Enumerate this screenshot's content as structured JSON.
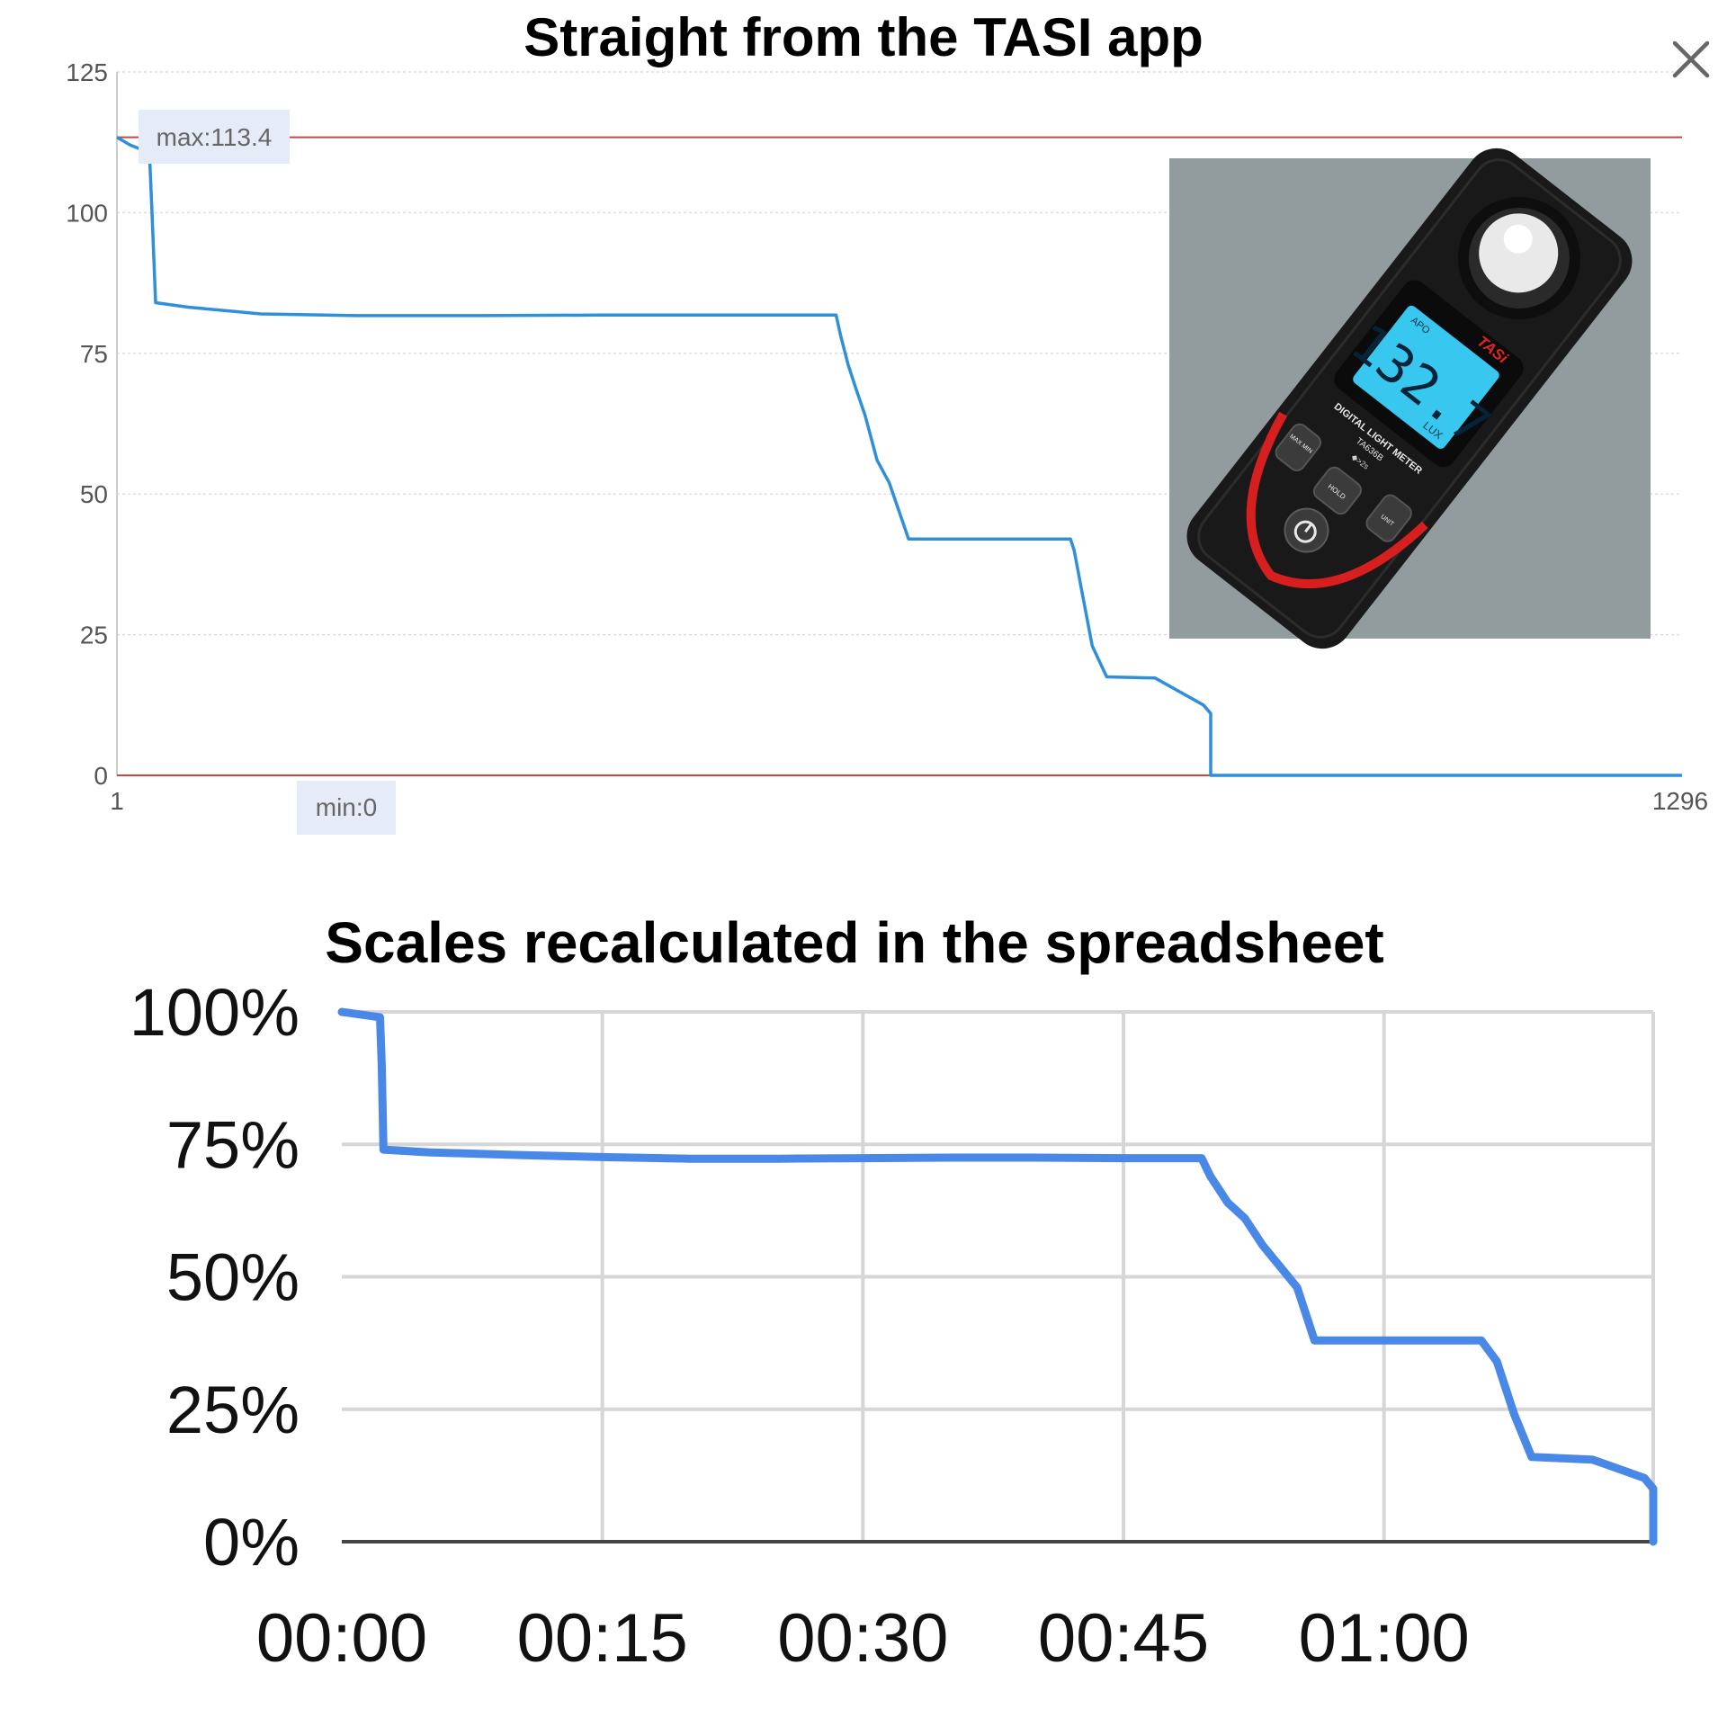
{
  "close_icon": "close-icon",
  "chart_data": [
    {
      "type": "line",
      "title": "Straight from the TASI app",
      "xlabel": "",
      "ylabel": "",
      "x_tick_labels": [
        "1",
        "1296"
      ],
      "xlim": [
        1,
        1296
      ],
      "y_ticks": [
        0,
        25,
        50,
        75,
        100,
        125
      ],
      "ylim": [
        0,
        125
      ],
      "grid": true,
      "max_label": "max:113.4",
      "min_label": "min:0",
      "max_value": 113.4,
      "min_value": 0,
      "colors": {
        "line": "#2f8fd8",
        "limit_line": "#cc4444",
        "tag_bg": "#e6ebf8"
      },
      "series": [
        {
          "x": [
            1,
            12,
            24,
            28,
            30,
            33,
            60,
            120,
            200,
            300,
            400,
            500,
            596,
            600,
            606,
            612,
            620,
            630,
            640,
            656,
            700,
            750,
            790,
            793,
            800,
            808,
            820,
            860,
            900,
            906,
            906,
            1296
          ],
          "y": [
            113.4,
            112,
            111,
            110,
            100,
            84,
            83.2,
            82,
            81.7,
            81.7,
            81.8,
            81.8,
            81.8,
            78,
            73,
            69,
            64,
            56,
            52,
            42,
            42,
            42,
            42,
            40,
            32,
            23,
            17.5,
            17.3,
            12.5,
            11,
            0,
            0
          ]
        }
      ],
      "inset_photo": {
        "brand": "TASi",
        "reading": "132.7",
        "unit": "LUX",
        "apo": "APO",
        "device_label": "DIGITAL LIGHT METER",
        "model": "TA636B",
        "hint": "◆>2s",
        "btn_maxmin": "MAX MIN",
        "btn_hold": "HOLD",
        "btn_unit": "UNIT"
      }
    },
    {
      "type": "line",
      "title": "Scales recalculated in the spreadsheet",
      "xlabel": "",
      "ylabel": "",
      "x_tick_labels": [
        "00:00",
        "00:15",
        "00:30",
        "00:45",
        "01:00"
      ],
      "x_ticks_minutes": [
        0,
        15,
        30,
        45,
        60
      ],
      "xlim_minutes": [
        0,
        75.5
      ],
      "y_tick_labels": [
        "0%",
        "25%",
        "50%",
        "75%",
        "100%"
      ],
      "y_ticks": [
        0,
        25,
        50,
        75,
        100
      ],
      "ylim": [
        0,
        100
      ],
      "grid": true,
      "colors": {
        "line": "#4a88e8",
        "grid": "#d6d6d6",
        "axis": "#444444"
      },
      "series": [
        {
          "x_minutes": [
            0,
            2.2,
            2.3,
            2.4,
            5,
            10,
            15,
            20,
            25,
            30,
            35,
            40,
            45,
            49.5,
            50,
            51,
            52,
            53,
            55,
            56,
            60,
            65,
            65.6,
            66.5,
            67.5,
            68.5,
            72,
            75,
            75.5,
            75.5
          ],
          "y": [
            100,
            99,
            90,
            74,
            73.5,
            73,
            72.6,
            72.3,
            72.3,
            72.4,
            72.5,
            72.5,
            72.4,
            72.4,
            69,
            64,
            61,
            56,
            48,
            38,
            38,
            38,
            38,
            34,
            24,
            16,
            15.5,
            12,
            10,
            0
          ]
        }
      ]
    }
  ]
}
